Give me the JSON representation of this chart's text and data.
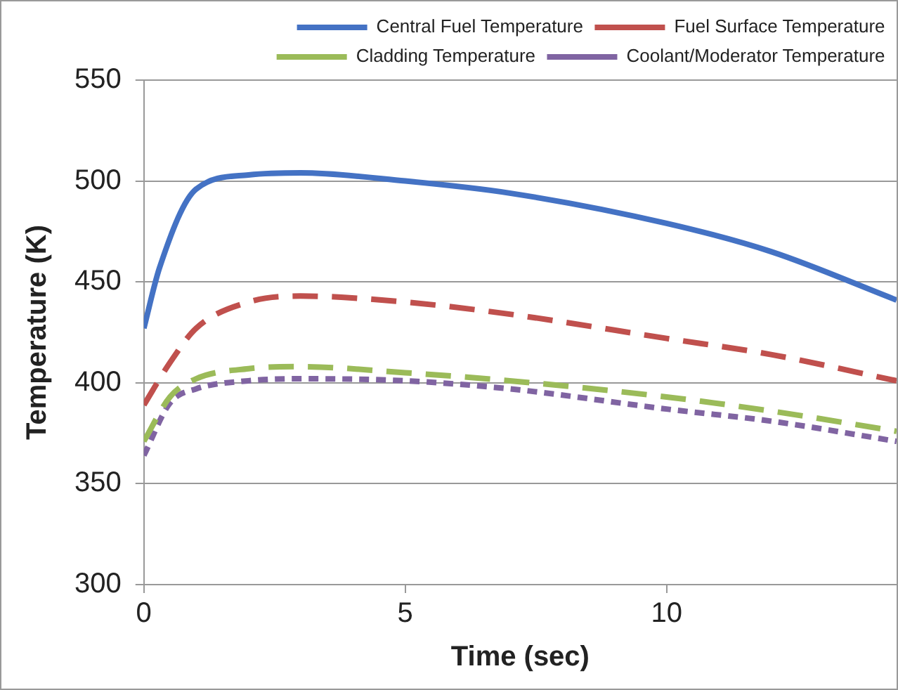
{
  "chart_data": {
    "type": "line",
    "xlabel": "Time (sec)",
    "ylabel": "Temperature (K)",
    "xlim": [
      0,
      14.4
    ],
    "xticks": [
      0,
      5,
      10
    ],
    "ylim": [
      300,
      550
    ],
    "yticks": [
      300,
      350,
      400,
      450,
      500,
      550
    ],
    "grid": "y",
    "legend": "top right",
    "marker": "none",
    "series": [
      {
        "name": "Central Fuel Temperature",
        "color": "#4472c4",
        "line_style": "solid",
        "x": [
          0,
          0.3,
          1,
          2,
          3,
          5,
          7,
          10,
          12,
          14.4
        ],
        "values": [
          427,
          457,
          496,
          503,
          504,
          500,
          494,
          479,
          465,
          441
        ]
      },
      {
        "name": "Fuel Surface Temperature",
        "color": "#c0504d",
        "line_style": "dashed",
        "x": [
          0,
          0.5,
          1,
          2,
          3,
          5,
          7,
          10,
          12,
          14.4
        ],
        "values": [
          389,
          410,
          427,
          440,
          443,
          440,
          434,
          422,
          414,
          401
        ]
      },
      {
        "name": "Cladding Temperature",
        "color": "#9bbb59",
        "line_style": "dashed",
        "x": [
          0,
          0.5,
          1,
          2,
          3,
          5,
          7,
          10,
          12,
          14.4
        ],
        "values": [
          371,
          393,
          402,
          407,
          408,
          405,
          401,
          393,
          386,
          376
        ]
      },
      {
        "name": "Coolant/Moderator Temperature",
        "color": "#8064a2",
        "line_style": "dotted",
        "x": [
          0,
          0.5,
          1,
          2,
          3,
          5,
          7,
          10,
          12,
          14.4
        ],
        "values": [
          364,
          390,
          397,
          401,
          402,
          401,
          397,
          387,
          381,
          371
        ]
      }
    ]
  }
}
